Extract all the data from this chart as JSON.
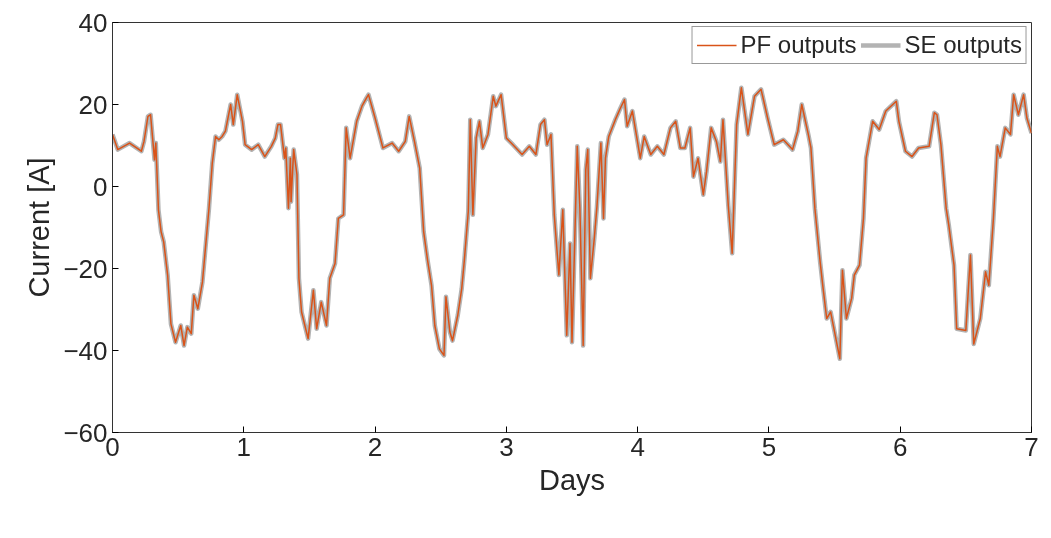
{
  "chart_data": {
    "type": "line",
    "xlabel": "Days",
    "ylabel": "Current [A]",
    "xlim": [
      0,
      7
    ],
    "ylim": [
      -60,
      40
    ],
    "xticks": [
      0,
      1,
      2,
      3,
      4,
      5,
      6,
      7
    ],
    "yticks": [
      -60,
      -40,
      -20,
      0,
      20,
      40
    ],
    "grid": false,
    "legend": "top right",
    "line_style": "solid",
    "marker": "none",
    "x": [
      0,
      0.04,
      0.13,
      0.22,
      0.24,
      0.27,
      0.29,
      0.32,
      0.33,
      0.35,
      0.37,
      0.39,
      0.42,
      0.445,
      0.48,
      0.52,
      0.545,
      0.57,
      0.6,
      0.62,
      0.65,
      0.685,
      0.71,
      0.735,
      0.76,
      0.785,
      0.81,
      0.835,
      0.86,
      0.9,
      0.92,
      0.95,
      0.99,
      1.01,
      1.06,
      1.11,
      1.16,
      1.21,
      1.24,
      1.26,
      1.28,
      1.31,
      1.32,
      1.34,
      1.355,
      1.36,
      1.38,
      1.405,
      1.42,
      1.44,
      1.49,
      1.53,
      1.555,
      1.59,
      1.63,
      1.655,
      1.695,
      1.72,
      1.76,
      1.78,
      1.81,
      1.86,
      1.9,
      1.935,
      1.95,
      2.0,
      2.06,
      2.13,
      2.18,
      2.23,
      2.26,
      2.3,
      2.34,
      2.37,
      2.4,
      2.43,
      2.455,
      2.49,
      2.525,
      2.54,
      2.57,
      2.59,
      2.63,
      2.66,
      2.68,
      2.71,
      2.725,
      2.745,
      2.77,
      2.795,
      2.82,
      2.86,
      2.9,
      2.92,
      2.96,
      3.0,
      3.05,
      3.12,
      3.175,
      3.225,
      3.26,
      3.29,
      3.31,
      3.34,
      3.365,
      3.4,
      3.43,
      3.46,
      3.485,
      3.5,
      3.54,
      3.56,
      3.585,
      3.605,
      3.62,
      3.64,
      3.67,
      3.69,
      3.72,
      3.74,
      3.755,
      3.78,
      3.83,
      3.87,
      3.9,
      3.92,
      3.96,
      4.02,
      4.05,
      4.1,
      4.15,
      4.2,
      4.25,
      4.29,
      4.325,
      4.36,
      4.4,
      4.425,
      4.46,
      4.5,
      4.525,
      4.56,
      4.6,
      4.63,
      4.65,
      4.69,
      4.72,
      4.754,
      4.79,
      4.84,
      4.89,
      4.94,
      4.99,
      5.04,
      5.11,
      5.18,
      5.22,
      5.25,
      5.3,
      5.32,
      5.35,
      5.39,
      5.41,
      5.44,
      5.47,
      5.51,
      5.54,
      5.56,
      5.59,
      5.63,
      5.65,
      5.69,
      5.72,
      5.74,
      5.79,
      5.84,
      5.89,
      5.97,
      5.99,
      6.04,
      6.09,
      6.14,
      6.22,
      6.26,
      6.28,
      6.31,
      6.35,
      6.37,
      6.41,
      6.43,
      6.5,
      6.535,
      6.56,
      6.61,
      6.65,
      6.675,
      6.71,
      6.74,
      6.76,
      6.8,
      6.84,
      6.864,
      6.9,
      6.94,
      6.965,
      7.0
    ],
    "series": [
      {
        "name": "PF outputs",
        "color": "#d95319",
        "values": [
          12.7,
          9,
          10.6,
          8.6,
          11,
          17.1,
          17.5,
          6.5,
          10.6,
          -5.7,
          -11,
          -13.5,
          -21.6,
          -33.5,
          -38,
          -33.9,
          -38.8,
          -34.3,
          -35.9,
          -26.5,
          -29.8,
          -23.3,
          -14.3,
          -5.3,
          5.7,
          12.2,
          11.4,
          12.2,
          13.5,
          20,
          15.1,
          22.4,
          15.9,
          10.2,
          9,
          10.2,
          7.3,
          9.8,
          11.8,
          15.1,
          15.1,
          6.9,
          9.4,
          -5.3,
          6.9,
          -3.7,
          9,
          2.9,
          -22.4,
          -30.6,
          -37.1,
          -25.3,
          -34.7,
          -28.2,
          -33.9,
          -22.4,
          -18.8,
          -7.8,
          -6.9,
          14.3,
          6.9,
          15.9,
          19.6,
          21.6,
          22.4,
          16.7,
          9.4,
          10.6,
          8.6,
          11,
          17.1,
          11,
          4.5,
          -11,
          -18,
          -24.1,
          -33.9,
          -39.6,
          -41.2,
          -26.9,
          -35.5,
          -37.6,
          -31.4,
          -24.9,
          -18,
          -6.1,
          16.3,
          -6.9,
          11.8,
          15.9,
          9.4,
          12.7,
          22,
          19.6,
          22.4,
          11.8,
          10.2,
          7.8,
          9.8,
          7.8,
          15.1,
          16.3,
          10.2,
          12.7,
          -6.9,
          -21.6,
          -5.7,
          -36.3,
          -13.9,
          -38,
          9.8,
          -5.3,
          -38.8,
          4.1,
          9,
          -22.4,
          -12.6,
          -4.9,
          10.6,
          -7.8,
          6.9,
          12.2,
          16.3,
          19.2,
          21.2,
          14.7,
          18.4,
          6.9,
          12.2,
          7.8,
          9.8,
          7.8,
          14.3,
          15.9,
          9.4,
          9.4,
          14.3,
          2.4,
          6.9,
          -2,
          3.7,
          14.3,
          11,
          6.1,
          16.3,
          -4.5,
          -16.3,
          15.1,
          24.1,
          12.7,
          22,
          23.7,
          16.7,
          10.2,
          11.4,
          9,
          13.5,
          20,
          12.7,
          9.4,
          -5.3,
          -18.4,
          -24.1,
          -32.2,
          -30.6,
          -37.1,
          -42,
          -20.4,
          -32.2,
          -27.3,
          -21.6,
          -19.2,
          -7.8,
          6.9,
          15.9,
          13.9,
          18.4,
          20.8,
          15.9,
          8.6,
          7.3,
          9.4,
          9.8,
          18,
          17.5,
          10.2,
          -5.3,
          -9.4,
          -19.2,
          -34.7,
          -35.1,
          -16.7,
          -38.4,
          -32.2,
          -20.8,
          -24.1,
          -7.8,
          9.8,
          7.3,
          14.3,
          12.7,
          22.4,
          17.5,
          22.4,
          16.7,
          13
        ]
      },
      {
        "name": "SE outputs",
        "color": "#b3b3b3",
        "values": [
          12.7,
          9,
          10.6,
          8.6,
          11,
          17.1,
          17.5,
          6.5,
          10.6,
          -5.7,
          -11,
          -13.5,
          -21.6,
          -33.5,
          -38,
          -33.9,
          -38.8,
          -34.3,
          -35.9,
          -26.5,
          -29.8,
          -23.3,
          -14.3,
          -5.3,
          5.7,
          12.2,
          11.4,
          12.2,
          13.5,
          20,
          15.1,
          22.4,
          15.9,
          10.2,
          9,
          10.2,
          7.3,
          9.8,
          11.8,
          15.1,
          15.1,
          6.9,
          9.4,
          -5.3,
          6.9,
          -3.7,
          9,
          2.9,
          -22.4,
          -30.6,
          -37.1,
          -25.3,
          -34.7,
          -28.2,
          -33.9,
          -22.4,
          -18.8,
          -7.8,
          -6.9,
          14.3,
          6.9,
          15.9,
          19.6,
          21.6,
          22.4,
          16.7,
          9.4,
          10.6,
          8.6,
          11,
          17.1,
          11,
          4.5,
          -11,
          -18,
          -24.1,
          -33.9,
          -39.6,
          -41.2,
          -26.9,
          -35.5,
          -37.6,
          -31.4,
          -24.9,
          -18,
          -6.1,
          16.3,
          -6.9,
          11.8,
          15.9,
          9.4,
          12.7,
          22,
          19.6,
          22.4,
          11.8,
          10.2,
          7.8,
          9.8,
          7.8,
          15.1,
          16.3,
          10.2,
          12.7,
          -6.9,
          -21.6,
          -5.7,
          -36.3,
          -13.9,
          -38,
          9.8,
          -5.3,
          -38.8,
          4.1,
          9,
          -22.4,
          -12.6,
          -4.9,
          10.6,
          -7.8,
          6.9,
          12.2,
          16.3,
          19.2,
          21.2,
          14.7,
          18.4,
          6.9,
          12.2,
          7.8,
          9.8,
          7.8,
          14.3,
          15.9,
          9.4,
          9.4,
          14.3,
          2.4,
          6.9,
          -2,
          3.7,
          14.3,
          11,
          6.1,
          16.3,
          -4.5,
          -16.3,
          15.1,
          24.1,
          12.7,
          22,
          23.7,
          16.7,
          10.2,
          11.4,
          9,
          13.5,
          20,
          12.7,
          9.4,
          -5.3,
          -18.4,
          -24.1,
          -32.2,
          -30.6,
          -37.1,
          -42,
          -20.4,
          -32.2,
          -27.3,
          -21.6,
          -19.2,
          -7.8,
          6.9,
          15.9,
          13.9,
          18.4,
          20.8,
          15.9,
          8.6,
          7.3,
          9.4,
          9.8,
          18,
          17.5,
          10.2,
          -5.3,
          -9.4,
          -19.2,
          -34.7,
          -35.1,
          -16.7,
          -38.4,
          -32.2,
          -20.8,
          -24.1,
          -7.8,
          9.8,
          7.3,
          14.3,
          12.7,
          22.4,
          17.5,
          22.4,
          16.7,
          13
        ]
      }
    ]
  }
}
